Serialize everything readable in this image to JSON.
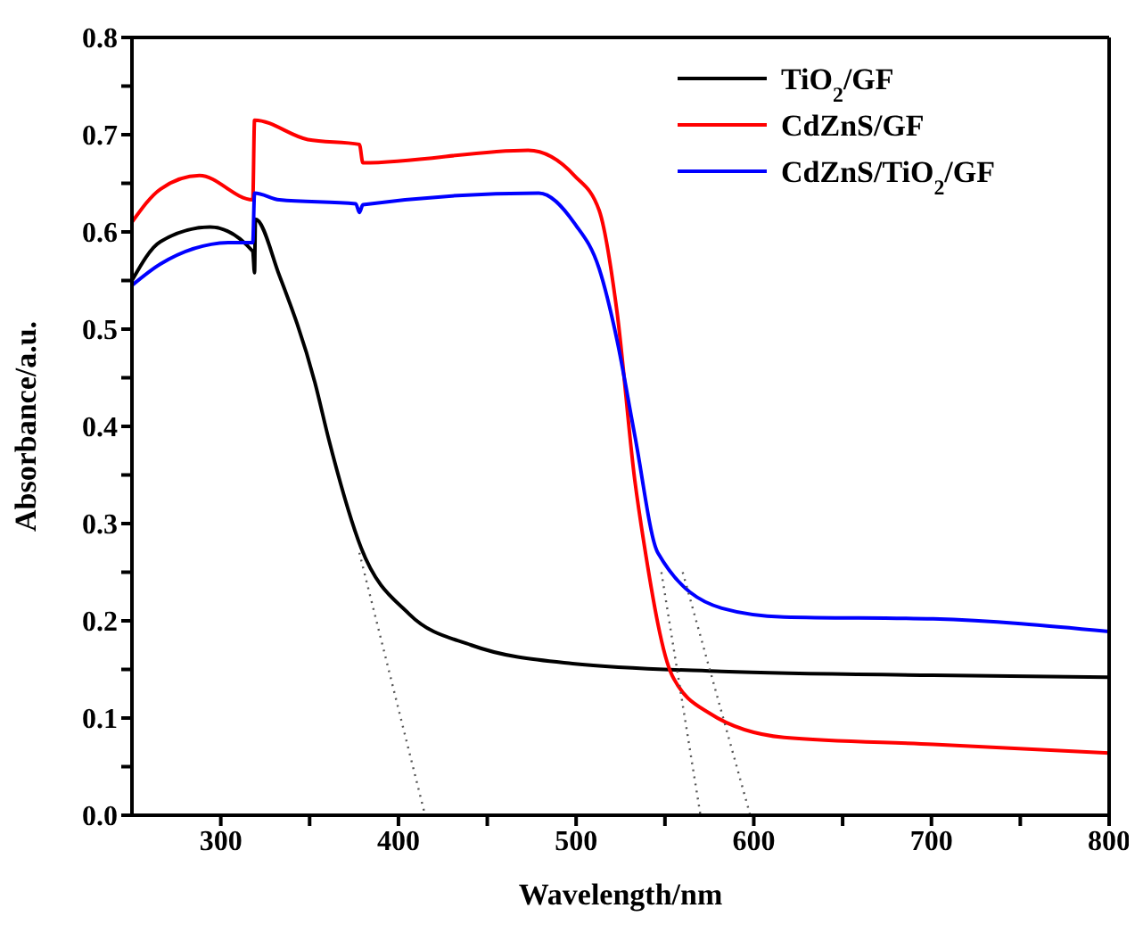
{
  "chart_data": {
    "type": "line",
    "xlabel": "Wavelength/nm",
    "ylabel": "Absorbance/a.u.",
    "xlim": [
      250,
      800
    ],
    "ylim": [
      0,
      0.8
    ],
    "xticks": [
      300,
      {
        "value": 350,
        "label": null
      },
      400,
      {
        "value": 450,
        "label": null
      },
      500,
      {
        "value": 550,
        "label": null
      },
      600,
      {
        "value": 650,
        "label": null
      },
      700,
      {
        "value": 750,
        "label": null
      },
      800
    ],
    "yticks": [
      {
        "value": 0,
        "label": "0.0"
      },
      {
        "value": 0.05,
        "label": null
      },
      0.1,
      {
        "value": 0.15,
        "label": null
      },
      0.2,
      {
        "value": 0.25,
        "label": null
      },
      0.3,
      {
        "value": 0.35,
        "label": null
      },
      0.4,
      {
        "value": 0.45,
        "label": null
      },
      0.5,
      {
        "value": 0.55,
        "label": null
      },
      0.6,
      {
        "value": 0.65,
        "label": null
      },
      0.7,
      {
        "value": 0.75,
        "label": null
      },
      0.8
    ],
    "legend": "top right",
    "marker": "none",
    "line_style": "solid",
    "series": [
      {
        "name": "TiO$_{2}$/GF",
        "color": "#000000",
        "x": [
          250,
          266,
          294,
          318,
          319,
          319.5,
          333,
          353,
          361,
          379,
          406,
          441,
          498,
          582,
          701,
          800
        ],
        "values": [
          0.55,
          0.59,
          0.605,
          0.58,
          0.558,
          0.613,
          0.555,
          0.445,
          0.385,
          0.275,
          0.207,
          0.175,
          0.156,
          0.148,
          0.144,
          0.142
        ]
      },
      {
        "name": "CdZnS/GF",
        "color": "#ff0000",
        "x": [
          250,
          266,
          288,
          318,
          319,
          349,
          378,
          380,
          473,
          499,
          513,
          523,
          533,
          538,
          554,
          575,
          617,
          701,
          800
        ],
        "values": [
          0.61,
          0.644,
          0.658,
          0.633,
          0.715,
          0.695,
          0.69,
          0.671,
          0.684,
          0.658,
          0.622,
          0.518,
          0.345,
          0.282,
          0.144,
          0.105,
          0.08,
          0.073,
          0.064
        ]
      },
      {
        "name": "CdZnS/TiO$_{2}$/GF",
        "color": "#0000ff",
        "x": [
          250,
          266,
          306,
          318,
          319,
          333,
          376,
          378,
          380,
          479,
          499,
          513,
          523,
          533,
          546,
          582,
          617,
          701,
          800
        ],
        "values": [
          0.545,
          0.567,
          0.589,
          0.589,
          0.64,
          0.633,
          0.629,
          0.62,
          0.628,
          0.64,
          0.609,
          0.562,
          0.489,
          0.391,
          0.27,
          0.213,
          0.204,
          0.202,
          0.189
        ]
      },
      {
        "type": "line",
        "color": "#555555",
        "line_style": "dotted",
        "x": [
          378,
          415
        ],
        "values": [
          0.27,
          0
        ]
      },
      {
        "type": "line",
        "color": "#555555",
        "line_style": "dotted",
        "x": [
          548,
          570
        ],
        "values": [
          0.25,
          0
        ]
      },
      {
        "type": "line",
        "color": "#555555",
        "line_style": "dotted",
        "x": [
          560,
          598
        ],
        "values": [
          0.25,
          0
        ]
      }
    ]
  }
}
